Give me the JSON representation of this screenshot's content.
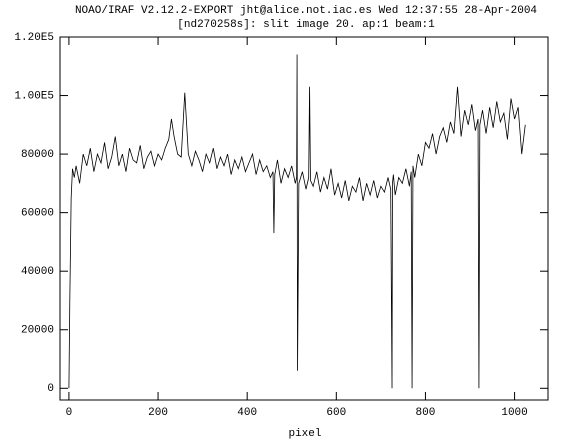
{
  "chart_data": {
    "type": "line",
    "title": "NOAO/IRAF V2.12.2-EXPORT jht@alice.not.iac.es Wed 12:37:55 28-Apr-2004",
    "subtitle": "[nd270258s]: slit image 20. ap:1 beam:1",
    "x_label": "pixel",
    "xlim": [
      -20,
      1075
    ],
    "ylim": [
      -4000,
      120000
    ],
    "xticks": [
      0,
      200,
      400,
      600,
      800,
      1000
    ],
    "yticks": [
      0,
      20000,
      40000,
      60000,
      80000,
      {
        "value": 100000,
        "label": "1.00E5"
      },
      {
        "value": 120000,
        "label": "1.20E5"
      }
    ],
    "x": [
      0,
      2,
      5,
      8,
      12,
      16,
      24,
      32,
      40,
      48,
      56,
      64,
      72,
      80,
      88,
      96,
      104,
      112,
      120,
      128,
      136,
      144,
      152,
      160,
      168,
      176,
      184,
      192,
      200,
      208,
      216,
      224,
      230,
      236,
      244,
      252,
      260,
      268,
      276,
      284,
      292,
      300,
      308,
      316,
      324,
      332,
      340,
      348,
      356,
      364,
      372,
      380,
      388,
      396,
      404,
      412,
      420,
      428,
      436,
      444,
      452,
      458,
      460,
      462,
      468,
      476,
      484,
      492,
      500,
      508,
      511,
      512,
      513,
      516,
      524,
      532,
      538,
      540,
      542,
      548,
      556,
      564,
      572,
      580,
      588,
      596,
      604,
      612,
      620,
      628,
      636,
      644,
      652,
      660,
      668,
      676,
      684,
      692,
      700,
      708,
      716,
      722,
      725,
      726,
      728,
      732,
      740,
      748,
      756,
      764,
      768,
      770,
      772,
      776,
      784,
      792,
      800,
      808,
      816,
      824,
      832,
      840,
      848,
      856,
      864,
      872,
      880,
      888,
      896,
      904,
      912,
      918,
      920,
      922,
      928,
      936,
      944,
      952,
      960,
      968,
      976,
      984,
      992,
      1000,
      1008,
      1016,
      1024
    ],
    "series": [
      {
        "color": "#000000",
        "values": [
          0,
          30000,
          65000,
          75000,
          72000,
          76000,
          70000,
          80000,
          76000,
          82000,
          74000,
          80000,
          77000,
          84000,
          75000,
          79000,
          86000,
          76000,
          80000,
          74000,
          82000,
          78000,
          77000,
          83000,
          75000,
          79000,
          81000,
          76000,
          80000,
          78000,
          82000,
          85000,
          92000,
          86000,
          80000,
          79000,
          101000,
          80000,
          76000,
          81000,
          78000,
          74000,
          80000,
          77000,
          82000,
          75000,
          79000,
          76000,
          80000,
          73000,
          78000,
          75000,
          79000,
          74000,
          77000,
          80000,
          73000,
          78000,
          74000,
          76000,
          72000,
          74000,
          53000,
          73000,
          78000,
          70000,
          75000,
          72000,
          76000,
          70000,
          72000,
          114000,
          6000,
          70000,
          74000,
          68000,
          72000,
          103000,
          71000,
          69000,
          74000,
          67000,
          72000,
          68000,
          75000,
          66000,
          70000,
          65000,
          71000,
          64000,
          69000,
          67000,
          72000,
          64000,
          70000,
          66000,
          71000,
          65000,
          69000,
          67000,
          72000,
          68000,
          0,
          70000,
          73000,
          66000,
          72000,
          70000,
          75000,
          69000,
          74000,
          0,
          76000,
          72000,
          80000,
          76000,
          84000,
          82000,
          87000,
          80000,
          86000,
          89000,
          84000,
          91000,
          87000,
          103000,
          86000,
          95000,
          90000,
          97000,
          88000,
          92000,
          0,
          90000,
          95000,
          87000,
          96000,
          89000,
          98000,
          91000,
          94000,
          85000,
          99000,
          92000,
          96000,
          80000,
          90000
        ]
      }
    ]
  }
}
